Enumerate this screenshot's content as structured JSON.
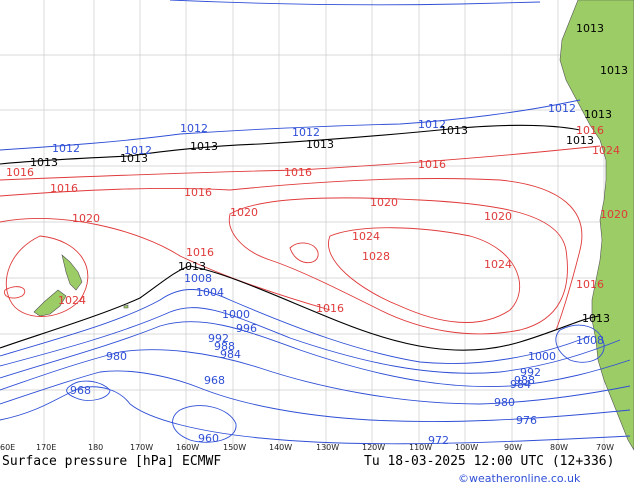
{
  "footer": {
    "title": "Surface pressure [hPa] ECMWF",
    "valid_time": "Tu 18-03-2025 12:00 UTC (12+336)",
    "credit": "©weatheronline.co.uk"
  },
  "axis": {
    "longitude_ticks": [
      "60E",
      "170E",
      "180",
      "170W",
      "160W",
      "150W",
      "140W",
      "130W",
      "120W",
      "110W",
      "100W",
      "90W",
      "80W",
      "70W"
    ]
  },
  "isobar_labels": {
    "red": [
      "1016",
      "1016",
      "1016",
      "1016",
      "1016",
      "1016",
      "1020",
      "1020",
      "1020",
      "1020",
      "1024",
      "1024",
      "1024",
      "1028",
      "1016",
      "1016",
      "1020",
      "1024",
      "1016"
    ],
    "blue": [
      "1012",
      "1012",
      "1012",
      "1012",
      "1012",
      "1008",
      "1004",
      "1000",
      "996",
      "992",
      "988",
      "984",
      "980",
      "968",
      "968",
      "960",
      "1000",
      "992",
      "988",
      "984",
      "980",
      "976",
      "972",
      "1012",
      "1008"
    ],
    "black": [
      "1013",
      "1013",
      "1013",
      "1013",
      "1013",
      "1013",
      "1013",
      "1013",
      "1013",
      "1013",
      "1013"
    ]
  },
  "colors": {
    "high_isobar": "#e03a3a",
    "low_isobar": "#2f4fd6",
    "reference_isobar": "#000000",
    "land": "#9ccc65",
    "ocean": "#ffffff",
    "grid": "#cccccc"
  }
}
